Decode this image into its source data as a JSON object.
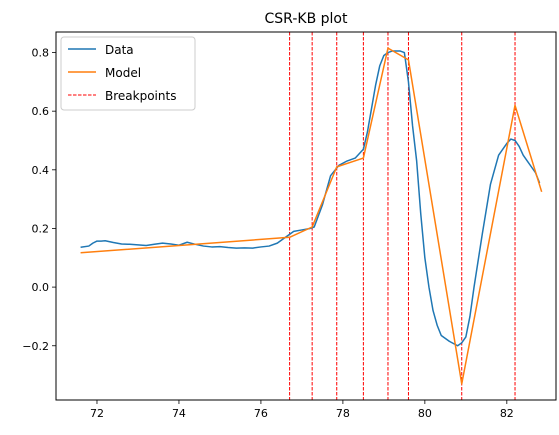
{
  "chart_data": {
    "type": "line",
    "title": "CSR-KB plot",
    "xlabel": "",
    "ylabel": "",
    "xlim": [
      71.0,
      83.2
    ],
    "ylim": [
      -0.385,
      0.87
    ],
    "grid": false,
    "legend_position": "top-left",
    "x_ticks": [
      72,
      74,
      76,
      78,
      80,
      82
    ],
    "x_tick_labels": [
      "72",
      "74",
      "76",
      "78",
      "80",
      "82"
    ],
    "y_ticks": [
      -0.2,
      0.0,
      0.2,
      0.4,
      0.6,
      0.8
    ],
    "y_tick_labels": [
      "−0.2",
      "0.0",
      "0.2",
      "0.4",
      "0.6",
      "0.8"
    ],
    "series": [
      {
        "name": "Data",
        "color": "#1f77b4",
        "style": "solid",
        "x": [
          71.6,
          71.8,
          71.9,
          72.0,
          72.1,
          72.2,
          72.3,
          72.4,
          72.6,
          72.8,
          73.0,
          73.2,
          73.4,
          73.6,
          73.8,
          74.0,
          74.2,
          74.4,
          74.6,
          74.8,
          75.0,
          75.2,
          75.4,
          75.6,
          75.8,
          76.0,
          76.2,
          76.4,
          76.6,
          76.8,
          77.0,
          77.2,
          77.3,
          77.5,
          77.7,
          77.9,
          78.1,
          78.3,
          78.5,
          78.6,
          78.8,
          78.9,
          79.0,
          79.1,
          79.2,
          79.4,
          79.5,
          79.6,
          79.7,
          79.8,
          79.9,
          80.0,
          80.1,
          80.2,
          80.3,
          80.4,
          80.6,
          80.8,
          80.9,
          81.0,
          81.1,
          81.2,
          81.4,
          81.6,
          81.8,
          82.0,
          82.1,
          82.2,
          82.3,
          82.4,
          82.5,
          82.6,
          82.7,
          82.8
        ],
        "y": [
          0.136,
          0.14,
          0.15,
          0.157,
          0.157,
          0.158,
          0.155,
          0.152,
          0.147,
          0.146,
          0.144,
          0.142,
          0.146,
          0.15,
          0.147,
          0.143,
          0.153,
          0.146,
          0.14,
          0.137,
          0.138,
          0.135,
          0.133,
          0.134,
          0.133,
          0.137,
          0.14,
          0.15,
          0.17,
          0.19,
          0.195,
          0.2,
          0.205,
          0.28,
          0.38,
          0.415,
          0.43,
          0.44,
          0.47,
          0.53,
          0.69,
          0.755,
          0.79,
          0.8,
          0.805,
          0.805,
          0.8,
          0.7,
          0.55,
          0.43,
          0.25,
          0.1,
          0.0,
          -0.08,
          -0.13,
          -0.165,
          -0.185,
          -0.2,
          -0.19,
          -0.17,
          -0.1,
          0.0,
          0.18,
          0.35,
          0.45,
          0.49,
          0.505,
          0.5,
          0.48,
          0.45,
          0.43,
          0.41,
          0.39,
          0.355
        ]
      },
      {
        "name": "Model",
        "color": "#ff7f0e",
        "style": "solid",
        "x": [
          71.6,
          76.7,
          77.25,
          77.85,
          78.5,
          79.1,
          79.6,
          80.9,
          82.2,
          82.85
        ],
        "y": [
          0.117,
          0.17,
          0.205,
          0.41,
          0.44,
          0.815,
          0.775,
          -0.33,
          0.62,
          0.325
        ]
      }
    ],
    "breakpoints": {
      "name": "Breakpoints",
      "color": "#ff0000",
      "style": "dashed",
      "x": [
        76.7,
        77.25,
        77.85,
        78.5,
        79.1,
        79.6,
        80.9,
        82.2
      ]
    }
  }
}
